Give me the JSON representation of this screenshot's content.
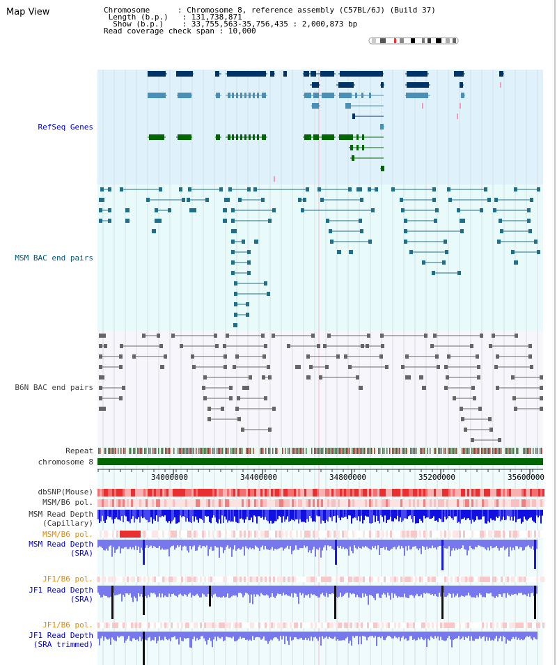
{
  "page_title": "Map View",
  "info": {
    "chromosome_key": "Chromosome",
    "chromosome_val": "Chromosome 8, reference assembly (C57BL/6J) (Build 37)",
    "length_key": "Length (b.p.)",
    "length_val": "131,738,871",
    "show_key": "Show (b.p.)",
    "show_val": "33,755,563-35,756,435 : 2,000,873 bp",
    "coverage_key": "Read coverage check span",
    "coverage_val": "10,000"
  },
  "tracks": {
    "refseq": "RefSeq Genes",
    "msm_bac": "MSM BAC end pairs",
    "b6n_bac": "B6N BAC end pairs",
    "repeat": "Repeat",
    "chromosome": "chromosome 8",
    "dbsnp": "dbSNP(Mouse)",
    "msm_b6_pol": "MSM/B6 pol.",
    "msm_depth_cap_1": "MSM Read Depth",
    "msm_depth_cap_2": "(Capillary)",
    "msm_b6_pol_2": "MSM/B6 pol.",
    "msm_depth_sra_1": "MSM Read Depth",
    "msm_depth_sra_2": "(SRA)",
    "jf1_pol_1": "JF1/B6 pol.",
    "jf1_depth_sra_1": "JF1 Read Depth",
    "jf1_depth_sra_2": "(SRA)",
    "jf1_pol_2": "JF1/B6 pol.",
    "jf1_depth_trim_1": "JF1 Read Depth",
    "jf1_depth_trim_2": "(SRA trimmed)"
  },
  "axis": {
    "ticks": [
      "34000000",
      "34400000",
      "34800000",
      "35200000",
      "35600000"
    ]
  },
  "colors": {
    "refseq_bg": "#dff2fb",
    "msm_bg": "#e8fafa",
    "b6n_bg": "#f6f6fc",
    "gene_navy": "#003366",
    "gene_steel": "#4a8fb5",
    "gene_green": "#006600",
    "bac_teal": "#1f6f8b",
    "bac_gray": "#666666",
    "chrom_green": "#006600",
    "depth_blue": "#1a1ae6",
    "depth_light": "#7777ee",
    "snp_red": "#ee3333"
  }
}
